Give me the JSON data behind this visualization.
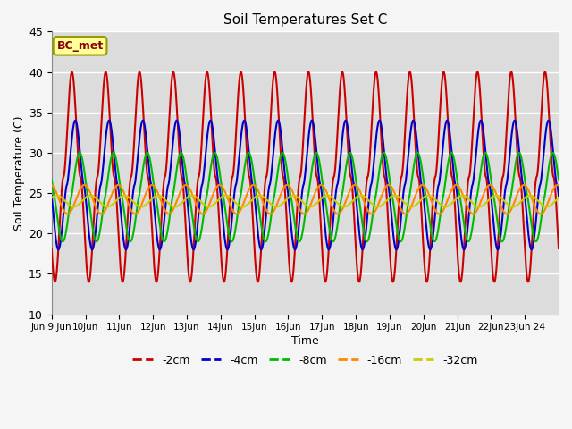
{
  "title": "Soil Temperatures Set C",
  "xlabel": "Time",
  "ylabel": "Soil Temperature (C)",
  "annotation": "BC_met",
  "ylim": [
    10,
    45
  ],
  "xlim": [
    0,
    15
  ],
  "series": {
    "-2cm": {
      "color": "#cc0000",
      "lw": 1.5
    },
    "-4cm": {
      "color": "#0000cc",
      "lw": 1.5
    },
    "-8cm": {
      "color": "#00bb00",
      "lw": 1.5
    },
    "-16cm": {
      "color": "#ff8800",
      "lw": 1.5
    },
    "-32cm": {
      "color": "#cccc00",
      "lw": 1.5
    }
  },
  "xtick_labels": [
    "Jun 9 Jun",
    "10Jun",
    "11Jun",
    "12Jun",
    "13Jun",
    "14Jun",
    "15Jun",
    "16Jun",
    "17Jun",
    "18Jun",
    "19Jun",
    "20Jun",
    "21Jun",
    "22Jun",
    "23Jun 24"
  ],
  "xtick_positions": [
    0,
    1,
    2,
    3,
    4,
    5,
    6,
    7,
    8,
    9,
    10,
    11,
    12,
    13,
    14
  ],
  "ytick_positions": [
    10,
    15,
    20,
    25,
    30,
    35,
    40,
    45
  ],
  "background_color": "#dcdcdc",
  "fig_color": "#f5f5f5",
  "grid_color": "#ffffff"
}
